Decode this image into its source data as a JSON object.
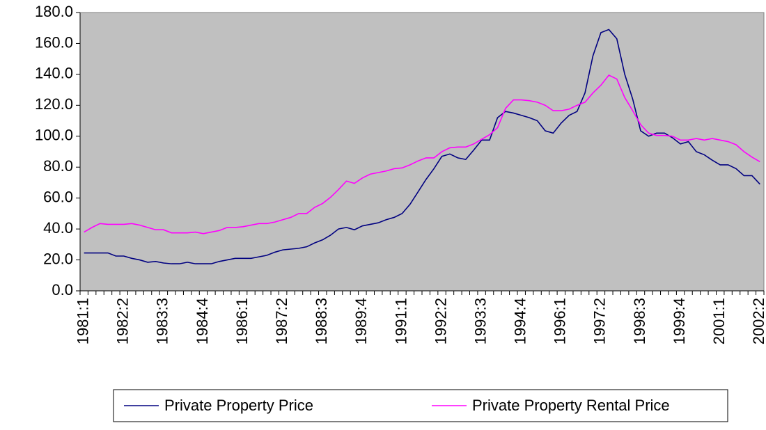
{
  "chart_data": {
    "type": "line",
    "categories": [
      "1981:1",
      null,
      null,
      null,
      null,
      "1982:2",
      null,
      null,
      null,
      null,
      "1983:3",
      null,
      null,
      null,
      null,
      "1984:4",
      null,
      null,
      null,
      null,
      "1986:1",
      null,
      null,
      null,
      null,
      "1987:2",
      null,
      null,
      null,
      null,
      "1988:3",
      null,
      null,
      null,
      null,
      "1989:4",
      null,
      null,
      null,
      null,
      "1991:1",
      null,
      null,
      null,
      null,
      "1992:2",
      null,
      null,
      null,
      null,
      "1993:3",
      null,
      null,
      null,
      null,
      "1994:4",
      null,
      null,
      null,
      null,
      "1996:1",
      null,
      null,
      null,
      null,
      "1997:2",
      null,
      null,
      null,
      null,
      "1998:3",
      null,
      null,
      null,
      null,
      "1999:4",
      null,
      null,
      null,
      null,
      "2001:1",
      null,
      null,
      null,
      null,
      "2002:2"
    ],
    "series": [
      {
        "name": "Private Property Price",
        "color": "#000080",
        "values": [
          24.5,
          24.5,
          24.5,
          24.5,
          22.5,
          22.5,
          21,
          20,
          18.5,
          19,
          18,
          17.5,
          17.5,
          18.5,
          17.5,
          17.5,
          17.5,
          19,
          20,
          21,
          21,
          21,
          22,
          23,
          25,
          26.5,
          27,
          27.5,
          28.5,
          31,
          33,
          36,
          40,
          41,
          39.5,
          42,
          43,
          44,
          46,
          47.5,
          50,
          56,
          64,
          72,
          79,
          87,
          88.5,
          86,
          85,
          91,
          97.5,
          97.5,
          112,
          116,
          115,
          113.5,
          112,
          110,
          103.5,
          102,
          108.5,
          113.5,
          116,
          128,
          152,
          167,
          169,
          163,
          140,
          124,
          103.5,
          100,
          102,
          102,
          99,
          95,
          96.5,
          90,
          88,
          84.5,
          81.5,
          81.5,
          79,
          74.5,
          74.5,
          69
        ]
      },
      {
        "name": "Private Property Rental Price",
        "color": "#ff00ff",
        "values": [
          38,
          41,
          43.5,
          43,
          43,
          43,
          43.5,
          42.5,
          41,
          39.5,
          39.5,
          37.5,
          37.5,
          37.5,
          38,
          37,
          38,
          39,
          41,
          41,
          41.5,
          42.5,
          43.5,
          43.5,
          44.5,
          46,
          47.5,
          50,
          50,
          54,
          56.5,
          60.5,
          65.5,
          71,
          69.5,
          73,
          75.5,
          76.5,
          77.5,
          79,
          79.5,
          81.5,
          84,
          86,
          86,
          90,
          92.5,
          93,
          93,
          95,
          98,
          101,
          105.5,
          118,
          123.5,
          123.5,
          123,
          122,
          120,
          116.5,
          116.5,
          117.5,
          120,
          122,
          128,
          133,
          139.5,
          137,
          125,
          116.5,
          107.5,
          102,
          100.5,
          100.5,
          100,
          97.5,
          97.5,
          98.5,
          97.5,
          98.5,
          97.5,
          96.5,
          94.5,
          90,
          86.5,
          83.5
        ]
      }
    ],
    "ylim": [
      0,
      180
    ],
    "yticks": [
      {
        "value": 0,
        "label": "0.0"
      },
      {
        "value": 20,
        "label": "20.0"
      },
      {
        "value": 40,
        "label": "40.0"
      },
      {
        "value": 60,
        "label": "60.0"
      },
      {
        "value": 80,
        "label": "80.0"
      },
      {
        "value": 100,
        "label": "100.0"
      },
      {
        "value": 120,
        "label": "120.0"
      },
      {
        "value": 140,
        "label": "140.0"
      },
      {
        "value": 160,
        "label": "160.0"
      },
      {
        "value": 180,
        "label": "180.0"
      }
    ],
    "grid": false,
    "plot_background": "#c0c0c0",
    "legend": "bottom"
  }
}
